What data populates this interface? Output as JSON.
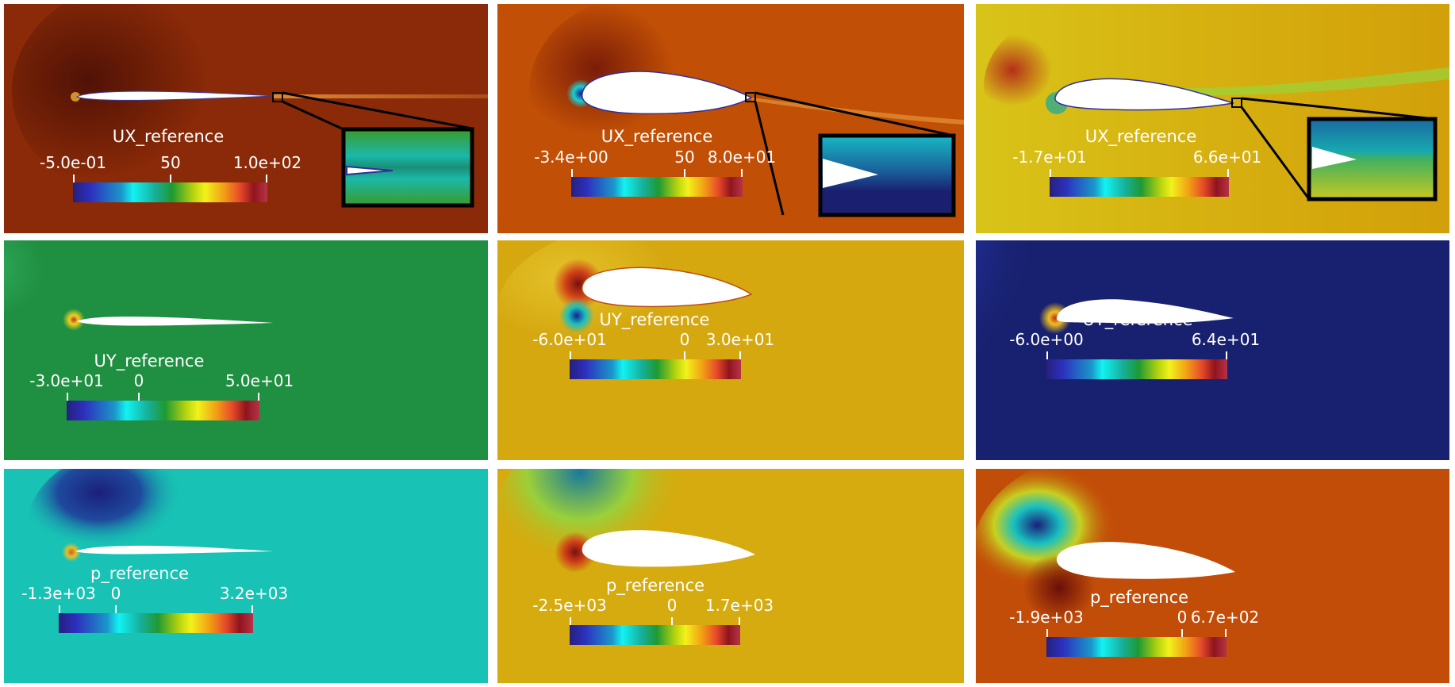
{
  "panels": [
    {
      "id": "ux-1",
      "field_name": "UX_reference",
      "background": "#8a2a08",
      "glow_color": "#5e1506",
      "airfoil_type": "thin",
      "inset": true,
      "inset_style": "green",
      "legend": {
        "title": "UX_reference",
        "ticks": [
          "-5.0e-01",
          "50",
          "1.0e+02"
        ]
      }
    },
    {
      "id": "ux-2",
      "field_name": "UX_reference",
      "background": "#c14f06",
      "glow_color": "#8a2808",
      "airfoil_type": "thick",
      "inset": true,
      "inset_style": "blue",
      "legend": {
        "title": "UX_reference",
        "ticks": [
          "-3.4e+00",
          "50",
          "8.0e+01"
        ]
      }
    },
    {
      "id": "ux-3",
      "field_name": "UX_reference",
      "background": "#d2a80a",
      "glow_color": "#b83a12",
      "airfoil_type": "medium",
      "inset": true,
      "inset_style": "mixed",
      "legend": {
        "title": "UX_reference",
        "ticks": [
          "-1.7e+01",
          "6.6e+01"
        ]
      }
    },
    {
      "id": "uy-1",
      "field_name": "UY_reference",
      "background": "#1f8f41",
      "glow_color": "#36b060",
      "airfoil_type": "thin",
      "inset": false,
      "legend": {
        "title": "UY_reference",
        "ticks": [
          "-3.0e+01",
          "0",
          "5.0e+01"
        ]
      }
    },
    {
      "id": "uy-2",
      "field_name": "UY_reference",
      "background": "#d5a810",
      "glow_color": "#e8c12a",
      "airfoil_type": "thick",
      "inset": false,
      "legend": {
        "title": "UY_reference",
        "ticks": [
          "-6.0e+01",
          "0",
          "3.0e+01"
        ]
      }
    },
    {
      "id": "uy-3",
      "field_name": "UY_reference",
      "background": "#18216f",
      "glow_color": "#1aa3b0",
      "airfoil_type": "medium",
      "inset": false,
      "legend": {
        "title": "UY_reference",
        "ticks": [
          "-6.0e+00",
          "6.4e+01"
        ]
      }
    },
    {
      "id": "p-1",
      "field_name": "p_reference",
      "background": "#18c2b4",
      "glow_color": "#1b1f7a",
      "airfoil_type": "thin",
      "inset": false,
      "legend": {
        "title": "p_reference",
        "ticks": [
          "-1.3e+03",
          "0",
          "3.2e+03"
        ]
      }
    },
    {
      "id": "p-2",
      "field_name": "p_reference",
      "background": "#d5ab0f",
      "glow_color": "#35b05e",
      "airfoil_type": "thick",
      "inset": false,
      "legend": {
        "title": "p_reference",
        "ticks": [
          "-2.5e+03",
          "0",
          "1.7e+03"
        ]
      }
    },
    {
      "id": "p-3",
      "field_name": "p_reference",
      "background": "#c24d08",
      "glow_color": "#1e9aa6",
      "airfoil_type": "medium",
      "inset": false,
      "legend": {
        "title": "p_reference",
        "ticks": [
          "-1.9e+03",
          "0",
          "6.7e+02"
        ]
      }
    }
  ]
}
